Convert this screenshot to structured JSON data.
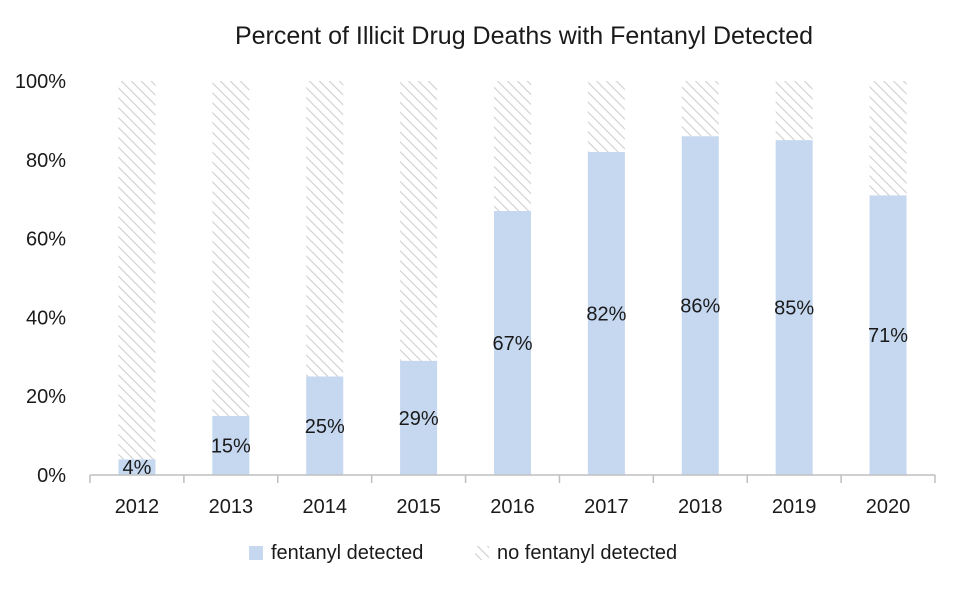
{
  "chart_data": {
    "type": "bar",
    "stacked": true,
    "title": "Percent of Illicit Drug Deaths with Fentanyl Detected",
    "xlabel": "",
    "ylabel": "",
    "categories": [
      "2012",
      "2013",
      "2014",
      "2015",
      "2016",
      "2017",
      "2018",
      "2019",
      "2020"
    ],
    "series": [
      {
        "name": "fentanyl detected",
        "values": [
          4,
          15,
          25,
          29,
          67,
          82,
          86,
          85,
          71
        ],
        "data_labels": [
          "4%",
          "15%",
          "25%",
          "29%",
          "67%",
          "82%",
          "86%",
          "85%",
          "71%"
        ],
        "color": "#c5d8f0",
        "pattern": "solid"
      },
      {
        "name": "no fentanyl detected",
        "values": [
          96,
          85,
          75,
          71,
          33,
          18,
          14,
          15,
          29
        ],
        "color": "#d9d9d9",
        "pattern": "diagonal-hatch"
      }
    ],
    "ylim": [
      0,
      100
    ],
    "yticks": [
      0,
      20,
      40,
      60,
      80,
      100
    ],
    "ytick_labels": [
      "0%",
      "20%",
      "40%",
      "60%",
      "80%",
      "100%"
    ],
    "grid": false,
    "legend_position": "bottom"
  }
}
